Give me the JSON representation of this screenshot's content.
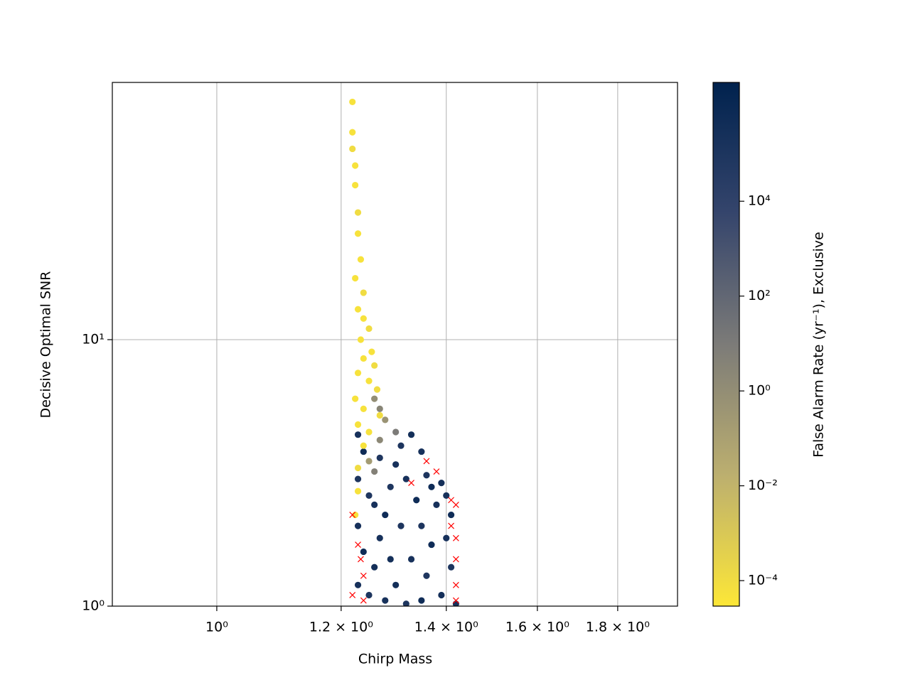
{
  "chart_data": {
    "type": "scatter",
    "xlabel": "Chirp Mass",
    "ylabel": "Decisive Optimal SNR",
    "xscale": "log",
    "yscale": "log",
    "xlim": [
      0.858,
      1.965
    ],
    "ylim": [
      1,
      92.3
    ],
    "xticks": [
      {
        "value": 1,
        "label": "10⁰"
      },
      {
        "value": 1.2,
        "label": "1.2 × 10⁰"
      },
      {
        "value": 1.4,
        "label": "1.4 × 10⁰"
      },
      {
        "value": 1.6,
        "label": "1.6 × 10⁰"
      },
      {
        "value": 1.8,
        "label": "1.8 × 10⁰"
      }
    ],
    "yticks": [
      {
        "value": 1,
        "label": "10⁰"
      },
      {
        "value": 10,
        "label": "10¹"
      }
    ],
    "grid": true,
    "colorbar": {
      "label": "False Alarm Rate (yr⁻¹), Exclusive",
      "scale": "log",
      "lim": [
        2.9e-05,
        3200000
      ],
      "ticks": [
        {
          "value": 0.0001,
          "label": "10⁻⁴"
        },
        {
          "value": 0.01,
          "label": "10⁻²"
        },
        {
          "value": 1,
          "label": "10⁰"
        },
        {
          "value": 100,
          "label": "10²"
        },
        {
          "value": 10000,
          "label": "10⁴"
        }
      ],
      "colormap": [
        "#fde737",
        "#bcaf6f",
        "#7c7b78",
        "#35456c",
        "#00224e"
      ]
    },
    "series": [
      {
        "marker": "o",
        "x": [
          1.23,
          1.24,
          1.23,
          1.25,
          1.23,
          1.24,
          1.23,
          1.25,
          1.26,
          1.27,
          1.28,
          1.29,
          1.3,
          1.31,
          1.33,
          1.32,
          1.34,
          1.35,
          1.33,
          1.3,
          1.28,
          1.36,
          1.37,
          1.38,
          1.36,
          1.39,
          1.4,
          1.41,
          1.4,
          1.41,
          1.39,
          1.42,
          1.35,
          1.32,
          1.26,
          1.29,
          1.27,
          1.35,
          1.37,
          1.31,
          1.26,
          1.27,
          1.28,
          1.3,
          1.27,
          1.25,
          1.26,
          1.22,
          1.22,
          1.22,
          1.225,
          1.225,
          1.23,
          1.23,
          1.235,
          1.225,
          1.24,
          1.23,
          1.24,
          1.25,
          1.235,
          1.255,
          1.24,
          1.26,
          1.23,
          1.25,
          1.265,
          1.225,
          1.24,
          1.27,
          1.23,
          1.25,
          1.24,
          1.23,
          1.23,
          1.225
        ],
        "y": [
          4.4,
          3.8,
          3.0,
          2.6,
          2.0,
          1.6,
          1.2,
          1.1,
          1.4,
          1.8,
          2.2,
          2.8,
          3.4,
          4.0,
          4.4,
          3.0,
          2.5,
          2.0,
          1.5,
          1.2,
          1.05,
          1.3,
          1.7,
          2.4,
          3.1,
          2.9,
          2.6,
          2.2,
          1.8,
          1.4,
          1.1,
          1.02,
          1.05,
          1.02,
          2.4,
          1.5,
          3.6,
          3.8,
          2.8,
          2.0,
          6,
          5.5,
          5,
          4.5,
          4.2,
          3.5,
          3.2,
          78,
          60,
          52,
          45,
          38,
          30,
          25,
          20,
          17,
          15,
          13,
          12,
          11,
          10,
          9,
          8.5,
          8,
          7.5,
          7,
          6.5,
          6,
          5.5,
          5.2,
          4.8,
          4.5,
          4,
          3.3,
          2.7,
          2.2
        ],
        "c": [
          200000,
          500000,
          100000,
          80000,
          200000,
          500000,
          200000,
          100000,
          300000,
          200000,
          500000,
          80000,
          200000,
          100000,
          300000,
          200000,
          500000,
          100000,
          200000,
          300000,
          200000,
          80000,
          500000,
          200000,
          100000,
          300000,
          200000,
          500000,
          200000,
          100000,
          300000,
          200000,
          500000,
          100000,
          200000,
          300000,
          80000,
          200000,
          500000,
          100000,
          1,
          3,
          0.5,
          10,
          2,
          0.2,
          5,
          5e-05,
          5e-05,
          0.0001,
          5e-05,
          5e-05,
          0.0001,
          5e-05,
          5e-05,
          5e-05,
          0.0001,
          5e-05,
          5e-05,
          0.0001,
          5e-05,
          5e-05,
          5e-05,
          0.0001,
          5e-05,
          5e-05,
          0.0001,
          5e-05,
          5e-05,
          0.0001,
          5e-05,
          5e-05,
          5e-05,
          0.0001,
          5e-05,
          5e-05
        ]
      },
      {
        "marker": "x",
        "color": "#ff0000",
        "x": [
          1.22,
          1.23,
          1.235,
          1.24,
          1.22,
          1.24,
          1.36,
          1.38,
          1.41,
          1.42,
          1.41,
          1.42,
          1.42,
          1.42,
          1.42,
          1.33
        ],
        "y": [
          2.2,
          1.7,
          1.5,
          1.3,
          1.1,
          1.05,
          3.5,
          3.2,
          2.5,
          2.4,
          2.0,
          1.8,
          1.5,
          1.2,
          1.05,
          2.9
        ]
      }
    ]
  }
}
